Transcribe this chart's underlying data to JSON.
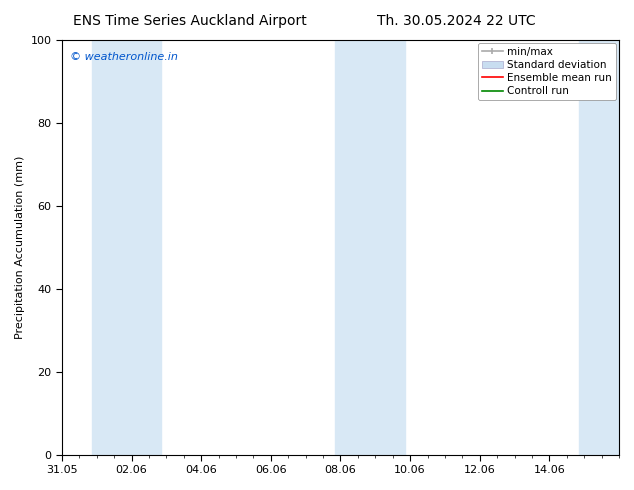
{
  "title_left": "ENS Time Series Auckland Airport",
  "title_right": "Th. 30.05.2024 22 UTC",
  "ylabel": "Precipitation Accumulation (mm)",
  "xlim_start": 0,
  "xlim_end": 16,
  "ylim": [
    0,
    100
  ],
  "yticks": [
    0,
    20,
    40,
    60,
    80,
    100
  ],
  "xtick_labels": [
    "31.05",
    "02.06",
    "04.06",
    "06.06",
    "08.06",
    "10.06",
    "12.06",
    "14.06"
  ],
  "xtick_positions": [
    0,
    2,
    4,
    6,
    8,
    10,
    12,
    14
  ],
  "watermark_text": "© weatheronline.in",
  "watermark_color": "#0055cc",
  "shaded_bands": [
    {
      "x_start": 0.85,
      "x_end": 2.85
    },
    {
      "x_start": 7.85,
      "x_end": 9.85
    },
    {
      "x_start": 14.85,
      "x_end": 16.1
    }
  ],
  "band_color": "#d8e8f5",
  "band_alpha": 1.0,
  "legend_labels": [
    "min/max",
    "Standard deviation",
    "Ensemble mean run",
    "Controll run"
  ],
  "minmax_color": "#aaaaaa",
  "std_color": "#c8ddf0",
  "ens_color": "#ff0000",
  "ctrl_color": "#008800",
  "background_color": "#ffffff",
  "title_fontsize": 10,
  "tick_fontsize": 8,
  "ylabel_fontsize": 8,
  "legend_fontsize": 7.5
}
